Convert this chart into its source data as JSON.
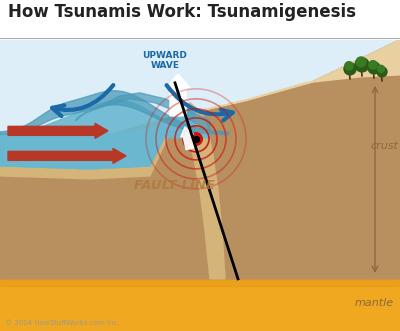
{
  "title": "How Tsunamis Work: Tsunamigenesis",
  "title_fontsize": 12,
  "title_color": "#222222",
  "fig_bg": "#ffffff",
  "sky_color": "#ddeef8",
  "ocean_color": "#6ab8d0",
  "ocean_dark": "#4a9ab8",
  "sand_light": "#e8d0a0",
  "sand_color": "#d4b478",
  "crust_color": "#b89060",
  "crust_dark": "#a07850",
  "mantle_color": "#f0a820",
  "mantle_dark": "#e09010",
  "fault_label": "FAULT LINE",
  "fault_label_color": "#b07840",
  "crust_label": "crust",
  "mantle_label": "mantle",
  "upward_wave_label": "UPWARD\nWAVE",
  "upward_wave_color": "#1a6aaa",
  "arrow_red": "#b83828",
  "copyright": "© 2004 HowStuffWorks.com Inc.",
  "copyright_color": "#999999",
  "seismic_red": "#cc1111",
  "line_color": "#8b6a3a"
}
